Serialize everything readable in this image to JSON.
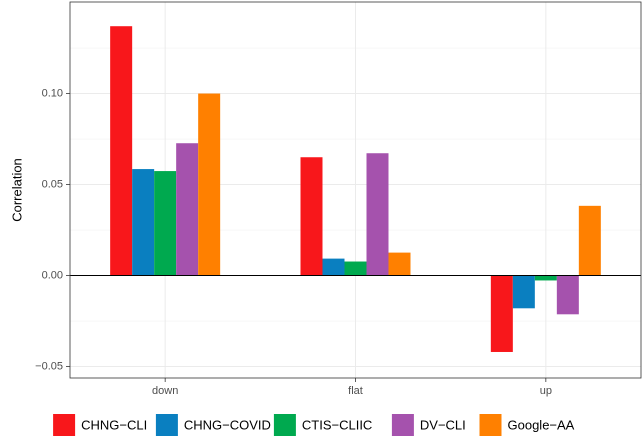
{
  "chart_data": {
    "type": "bar",
    "y_label": "Correlation",
    "categories": [
      "down",
      "flat",
      "up"
    ],
    "series": [
      {
        "name": "CHNG−CLI",
        "color": "#f8171b",
        "values": [
          0.137,
          0.065,
          -0.042
        ]
      },
      {
        "name": "CHNG−COVID",
        "color": "#0a7fc0",
        "values": [
          0.0585,
          0.0093,
          -0.018
        ]
      },
      {
        "name": "CTIS−CLIIC",
        "color": "#00a94f",
        "values": [
          0.0574,
          0.0077,
          -0.0027
        ]
      },
      {
        "name": "DV−CLI",
        "color": "#a552ad",
        "values": [
          0.0727,
          0.0672,
          -0.0213
        ]
      },
      {
        "name": "Google−AA",
        "color": "#ff8000",
        "values": [
          0.1,
          0.0126,
          0.0383
        ]
      }
    ],
    "ylim": [
      -0.0563,
      0.1503
    ],
    "yticks": [
      {
        "value": -0.05,
        "label": "−0.05"
      },
      {
        "value": 0,
        "label": "0.00"
      },
      {
        "value": 0.05,
        "label": "0.05"
      },
      {
        "value": 0.1,
        "label": "0.10"
      }
    ],
    "grid": true,
    "legend": "bottom"
  }
}
